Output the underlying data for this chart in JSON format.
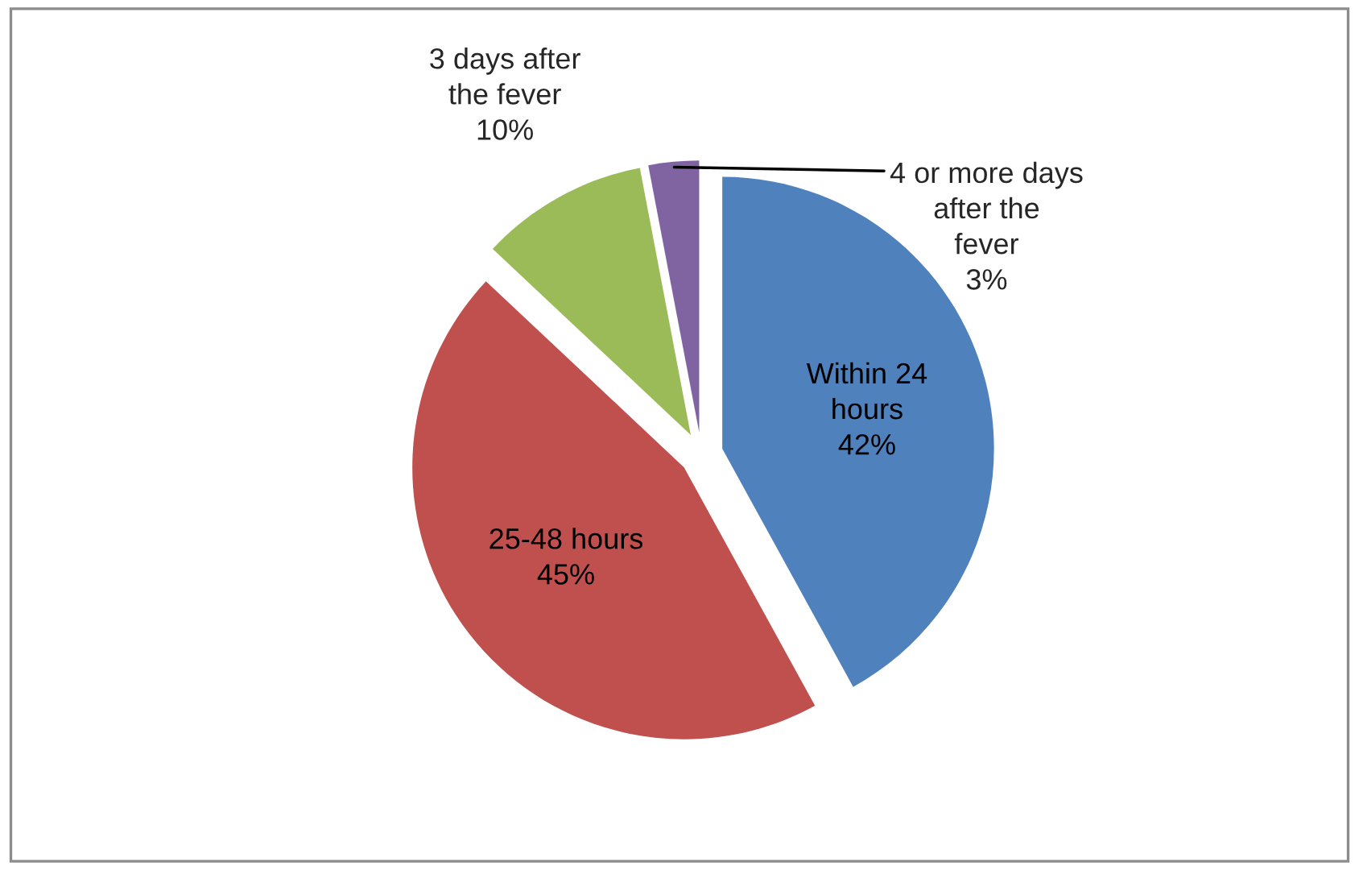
{
  "chart_data": {
    "type": "pie",
    "categories": [
      "Within 24 hours",
      "25-48 hours",
      "3 days after the fever",
      "4 or more days after the fever"
    ],
    "values": [
      42,
      45,
      10,
      3
    ],
    "value_labels": [
      "42%",
      "45%",
      "10%",
      "3%"
    ],
    "colors": [
      "#4f81bd",
      "#c0504d",
      "#9bbb59",
      "#8064a2"
    ]
  }
}
